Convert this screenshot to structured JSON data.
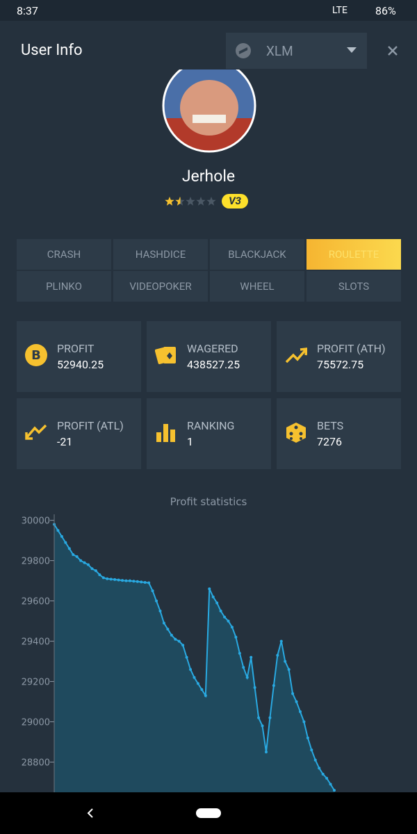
{
  "status_bar": {
    "time": "8:37",
    "network": "LTE",
    "battery": "86%"
  },
  "header": {
    "title": "User Info",
    "currency": "XLM"
  },
  "profile": {
    "username": "Jerhole",
    "rating": 1.5,
    "badge": "V3"
  },
  "tabs": {
    "items": [
      "CRASH",
      "HASHDICE",
      "BLACKJACK",
      "ROULETTE",
      "PLINKO",
      "VIDEOPOKER",
      "WHEEL",
      "SLOTS"
    ],
    "active": "ROULETTE"
  },
  "stats": [
    {
      "label": "PROFIT",
      "value": 52940.25
    },
    {
      "label": "WAGERED",
      "value": 438527.25
    },
    {
      "label": "PROFIT (ATH)",
      "value": 75572.75
    },
    {
      "label": "PROFIT (ATL)",
      "value": -21
    },
    {
      "label": "RANKING",
      "value": 1
    },
    {
      "label": "BETS",
      "value": 7276
    }
  ],
  "chart_data": {
    "type": "line",
    "title": "Profit statistics",
    "color": "#29a9e1",
    "fill": "#1f4a5e",
    "ylim": [
      28650,
      30030
    ],
    "yticks": [
      28800,
      29000,
      29200,
      29400,
      29600,
      29800,
      30000
    ],
    "values": [
      29980,
      29950,
      29920,
      29890,
      29860,
      29830,
      29820,
      29800,
      29790,
      29780,
      29760,
      29750,
      29730,
      29715,
      29710,
      29708,
      29706,
      29704,
      29702,
      29700,
      29700,
      29698,
      29696,
      29694,
      29692,
      29690,
      29650,
      29600,
      29550,
      29490,
      29460,
      29430,
      29410,
      29400,
      29380,
      29320,
      29260,
      29220,
      29190,
      29160,
      29130,
      29660,
      29620,
      29590,
      29550,
      29520,
      29500,
      29470,
      29420,
      29340,
      29270,
      29220,
      29320,
      29170,
      29020,
      28980,
      28850,
      29020,
      29180,
      29330,
      29400,
      29300,
      29260,
      29140,
      29100,
      29050,
      29000,
      28920,
      28860,
      28810,
      28770,
      28740,
      28720,
      28690,
      28660
    ]
  }
}
